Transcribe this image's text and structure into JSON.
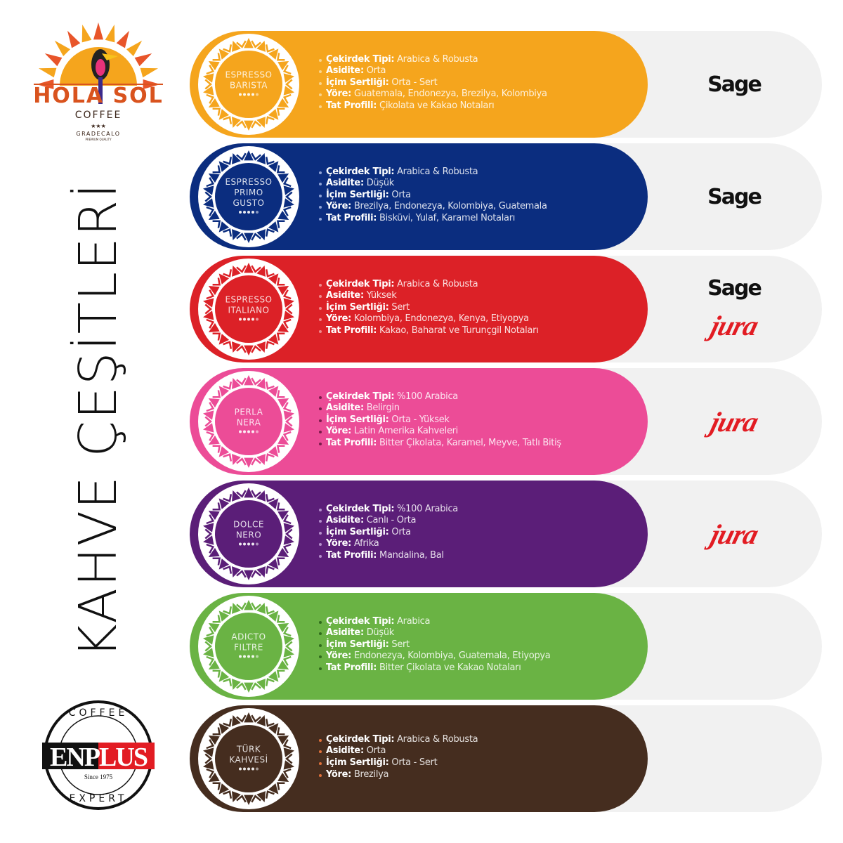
{
  "title": "KAHVE ÇEŞİTLERİ",
  "brands": {
    "top_logo": {
      "name": "HOLA SOL",
      "sub": "COFFEE",
      "grade": "GRADECALO",
      "tag": "PREMIUM QUALITY"
    },
    "bottom_logo": {
      "top": "COFFEE",
      "name_left": "EN",
      "name_right": "PLUS",
      "since": "Since 1975",
      "bottom": "EXPERT"
    }
  },
  "machine_logos": {
    "sage": "Sage",
    "jura": "jura"
  },
  "products": [
    {
      "name_lines": [
        "ESPRESSO",
        "BARISTA"
      ],
      "color": "#f5a51d",
      "bullet": "#f9d48a",
      "specs": [
        {
          "label": "Çekirdek Tipi:",
          "value": "Arabica & Robusta"
        },
        {
          "label": "Asidite:",
          "value": "Orta"
        },
        {
          "label": "İçim Sertliği:",
          "value": "Orta - Sert"
        },
        {
          "label": "Yöre:",
          "value": "Guatemala, Endonezya, Brezilya, Kolombiya"
        },
        {
          "label": "Tat Profili:",
          "value": "Çikolata ve Kakao Notaları"
        }
      ],
      "machines": [
        "sage"
      ]
    },
    {
      "name_lines": [
        "ESPRESSO",
        "PRIMO",
        "GUSTO"
      ],
      "color": "#0b2d7f",
      "bullet": "#8fa3d6",
      "specs": [
        {
          "label": "Çekirdek Tipi:",
          "value": "Arabica & Robusta"
        },
        {
          "label": "Asidite:",
          "value": "Düşük"
        },
        {
          "label": "İçim Sertliği:",
          "value": "Orta"
        },
        {
          "label": "Yöre:",
          "value": "Brezilya, Endonezya, Kolombiya, Guatemala"
        },
        {
          "label": "Tat Profili:",
          "value": "Bisküvi, Yulaf, Karamel Notaları"
        }
      ],
      "machines": [
        "sage"
      ]
    },
    {
      "name_lines": [
        "ESPRESSO",
        "ITALIANO"
      ],
      "color": "#dc2127",
      "bullet": "#f08a8d",
      "specs": [
        {
          "label": "Çekirdek Tipi:",
          "value": "Arabica & Robusta"
        },
        {
          "label": "Asidite:",
          "value": "Yüksek"
        },
        {
          "label": "İçim Sertliği:",
          "value": "Sert"
        },
        {
          "label": "Yöre:",
          "value": "Kolombiya, Endonezya, Kenya, Etiyopya"
        },
        {
          "label": "Tat Profili:",
          "value": "Kakao, Baharat ve Turunçgil Notaları"
        }
      ],
      "machines": [
        "sage",
        "jura"
      ]
    },
    {
      "name_lines": [
        "PERLA",
        "NERA"
      ],
      "color": "#ec4c97",
      "bullet": "#7a1a4a",
      "specs": [
        {
          "label": "Çekirdek Tipi:",
          "value": "%100 Arabica"
        },
        {
          "label": "Asidite:",
          "value": "Belirgin"
        },
        {
          "label": "İçim Sertliği:",
          "value": "Orta - Yüksek"
        },
        {
          "label": "Yöre:",
          "value": "Latin Amerika Kahveleri"
        },
        {
          "label": "Tat Profili:",
          "value": "Bitter Çikolata, Karamel, Meyve, Tatlı Bitiş"
        }
      ],
      "machines": [
        "jura"
      ]
    },
    {
      "name_lines": [
        "DOLCE",
        "NERO"
      ],
      "color": "#5b1e78",
      "bullet": "#b58fcc",
      "specs": [
        {
          "label": "Çekirdek Tipi:",
          "value": "%100 Arabica"
        },
        {
          "label": "Asidite:",
          "value": "Canlı - Orta"
        },
        {
          "label": "İçim Sertliği:",
          "value": "Orta"
        },
        {
          "label": "Yöre:",
          "value": "Afrika"
        },
        {
          "label": "Tat Profili:",
          "value": "Mandalina, Bal"
        }
      ],
      "machines": [
        "jura"
      ]
    },
    {
      "name_lines": [
        "ADICTO",
        "FILTRE"
      ],
      "color": "#6ab344",
      "bullet": "#2f6b1c",
      "specs": [
        {
          "label": "Çekirdek Tipi:",
          "value": "Arabica"
        },
        {
          "label": "Asidite:",
          "value": "Düşük"
        },
        {
          "label": "İçim Sertliği:",
          "value": "Sert"
        },
        {
          "label": "Yöre:",
          "value": "Endonezya, Kolombiya, Guatemala, Etiyopya"
        },
        {
          "label": "Tat Profili:",
          "value": "Bitter Çikolata ve Kakao Notaları"
        }
      ],
      "machines": []
    },
    {
      "name_lines": [
        "TÜRK",
        "KAHVESİ"
      ],
      "color": "#452d1f",
      "bullet": "#e0703a",
      "specs": [
        {
          "label": "Çekirdek Tipi:",
          "value": "Arabica & Robusta"
        },
        {
          "label": "Asidite:",
          "value": "Orta"
        },
        {
          "label": "İçim Sertliği:",
          "value": "Orta - Sert"
        },
        {
          "label": "Yöre:",
          "value": "Brezilya"
        }
      ],
      "machines": []
    }
  ]
}
